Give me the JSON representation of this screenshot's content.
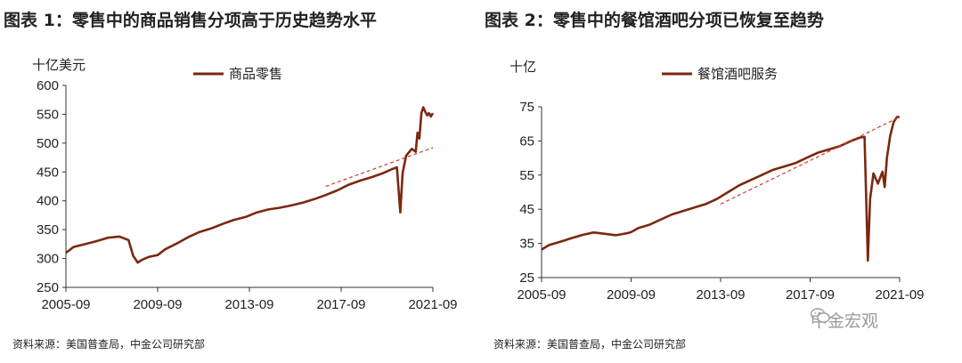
{
  "figure1": {
    "title": "图表 1：零售中的商品销售分项高于历史趋势水平",
    "source": "资料来源：美国普查局，中金公司研究部"
  },
  "figure2": {
    "title": "图表 2：零售中的餐馆酒吧分项已恢复至趋势",
    "source": "资料来源：美国普查局，中金公司研究部"
  },
  "watermark": {
    "text": "中金宏观",
    "icon": "wechat-icon"
  },
  "chart_data": [
    {
      "type": "line",
      "title": "图表 1：零售中的商品销售分项高于历史趋势水平",
      "unit_label": "十亿美元",
      "ylim": [
        250,
        600
      ],
      "yticks": [
        250,
        300,
        350,
        400,
        450,
        500,
        550,
        600
      ],
      "xlim": [
        2005.67,
        2021.67
      ],
      "xticks": [
        2005.67,
        2009.67,
        2013.67,
        2017.67,
        2021.67
      ],
      "xtick_labels": [
        "2005-09",
        "2009-09",
        "2013-09",
        "2017-09",
        "2021-09"
      ],
      "series": [
        {
          "name": "商品零售",
          "color": "#7a2810",
          "style": "solid",
          "x": [
            2005.67,
            2006.0,
            2006.5,
            2007.0,
            2007.5,
            2008.0,
            2008.4,
            2008.6,
            2008.8,
            2009.0,
            2009.3,
            2009.67,
            2010.0,
            2010.5,
            2011.0,
            2011.5,
            2012.0,
            2012.5,
            2013.0,
            2013.5,
            2014.0,
            2014.5,
            2015.0,
            2015.5,
            2016.0,
            2016.5,
            2017.0,
            2017.5,
            2018.0,
            2018.5,
            2019.0,
            2019.5,
            2019.9,
            2020.1,
            2020.25,
            2020.35,
            2020.5,
            2020.75,
            2020.92,
            2021.0,
            2021.08,
            2021.17,
            2021.25,
            2021.33,
            2021.42,
            2021.5,
            2021.58,
            2021.67
          ],
          "values": [
            310,
            320,
            325,
            330,
            336,
            338,
            332,
            305,
            293,
            298,
            303,
            306,
            316,
            326,
            337,
            346,
            352,
            360,
            367,
            372,
            380,
            385,
            388,
            392,
            397,
            403,
            410,
            418,
            428,
            435,
            441,
            448,
            455,
            458,
            380,
            448,
            478,
            490,
            485,
            518,
            508,
            552,
            562,
            555,
            548,
            552,
            546,
            552
          ]
        },
        {
          "name": "trend",
          "color": "#d23a2a",
          "style": "dashed",
          "x": [
            2017.0,
            2021.67
          ],
          "values": [
            425,
            492
          ]
        }
      ],
      "legend": [
        "商品零售"
      ]
    },
    {
      "type": "line",
      "title": "图表 2：零售中的餐馆酒吧分项已恢复至趋势",
      "unit_label": "十亿",
      "ylim": [
        25,
        75
      ],
      "yticks": [
        25,
        35,
        45,
        55,
        65,
        75
      ],
      "xlim": [
        2005.67,
        2021.67
      ],
      "xticks": [
        2005.67,
        2009.67,
        2013.67,
        2017.67,
        2021.67
      ],
      "xtick_labels": [
        "2005-09",
        "2009-09",
        "2013-09",
        "2017-09",
        "2021-09"
      ],
      "series": [
        {
          "name": "餐馆酒吧服务",
          "color": "#7a2810",
          "style": "solid",
          "x": [
            2005.67,
            2006.0,
            2006.5,
            2007.0,
            2007.5,
            2008.0,
            2008.5,
            2009.0,
            2009.5,
            2009.67,
            2010.0,
            2010.5,
            2011.0,
            2011.5,
            2012.0,
            2012.5,
            2013.0,
            2013.5,
            2014.0,
            2014.5,
            2015.0,
            2015.5,
            2016.0,
            2016.5,
            2017.0,
            2017.5,
            2018.0,
            2018.5,
            2019.0,
            2019.5,
            2019.9,
            2020.1,
            2020.25,
            2020.35,
            2020.5,
            2020.7,
            2020.9,
            2021.0,
            2021.1,
            2021.25,
            2021.4,
            2021.55,
            2021.67
          ],
          "values": [
            33.2,
            34.5,
            35.5,
            36.5,
            37.5,
            38.2,
            37.8,
            37.4,
            38.0,
            38.3,
            39.5,
            40.5,
            42.0,
            43.5,
            44.5,
            45.5,
            46.5,
            48.0,
            50.0,
            52.0,
            53.5,
            55.0,
            56.5,
            57.5,
            58.5,
            60.0,
            61.5,
            62.5,
            63.5,
            65.0,
            66.0,
            66.2,
            30.0,
            48.0,
            55.5,
            52.5,
            56.0,
            51.5,
            60.0,
            66.5,
            70.5,
            72.0,
            72.0
          ]
        },
        {
          "name": "trend",
          "color": "#d23a2a",
          "style": "dashed",
          "x": [
            2013.67,
            2021.67
          ],
          "values": [
            46.5,
            72
          ]
        }
      ],
      "legend": [
        "餐馆酒吧服务"
      ]
    }
  ]
}
